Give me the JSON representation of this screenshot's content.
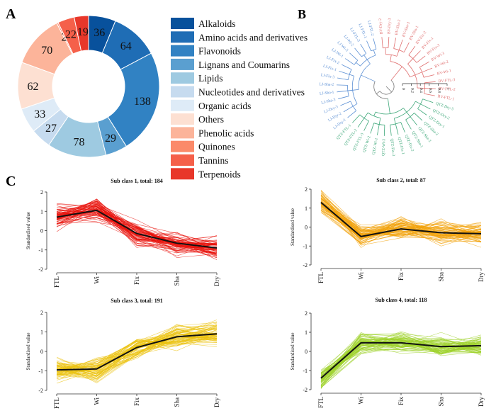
{
  "panels": {
    "a": "A",
    "b": "B",
    "c": "C"
  },
  "chart_data": [
    {
      "panel": "A",
      "type": "pie",
      "categories": [
        "Alkaloids",
        "Amino acids and derivatives",
        "Flavonoids",
        "Lignans and Coumarins",
        "Lipids",
        "Nucleotides and derivatives",
        "Organic acids",
        "Others",
        "Phenolic acids",
        "Quinones",
        "Tannins",
        "Terpenoids"
      ],
      "values": [
        36,
        64,
        138,
        29,
        78,
        27,
        33,
        62,
        70,
        2,
        22,
        19
      ],
      "colors": [
        "#08519c",
        "#1f6db5",
        "#3182c3",
        "#5a9fd0",
        "#9ecae1",
        "#c6dbef",
        "#deebf7",
        "#fde0d2",
        "#fcb49a",
        "#fb8a6a",
        "#f5604a",
        "#e8372a"
      ],
      "legend": "right"
    },
    {
      "panel": "B",
      "type": "dendrogram",
      "labels": [
        "BV-Dry-2",
        "BV-Dry-3",
        "BV-Sha-2",
        "BV-Sha-3",
        "BV-Sha-1",
        "BV-Fix-2",
        "BV-Fix-1",
        "BV-Fix-3",
        "BV-Wi-3",
        "BV-Wi-2",
        "BV-Wi-1",
        "BV-FTL-3",
        "BV-FTL-2",
        "BV-FTL-1",
        "QTZ-Dry-3",
        "QTZ-Dry-2",
        "QTZ-Dry-1",
        "QTZ-Sha-2",
        "QTZ-Sha-3",
        "QTZ-Sha-1",
        "QTZ-Fix-2",
        "QTZ-Fix-1",
        "QTZ-Fix-3",
        "QTZ-Wi-3",
        "QTZ-Wi-1",
        "QTZ-Wi-2",
        "QTZ-FTL-3",
        "QTZ-FTL-2",
        "QTZ-FTL-1",
        "LJ-Dry-1",
        "LJ-Dry-2",
        "LJ-Dry-3",
        "LJ-Sha-3",
        "LJ-Sha-1",
        "LJ-Sha-2",
        "LJ-Fix-3",
        "LJ-Fix-1",
        "LJ-Fix-2",
        "LJ-Wi-1",
        "LJ-Wi-3",
        "LJ-Wi-2",
        "LJ-FTL-3",
        "LJ-FTL-1",
        "LJ-FTL-2"
      ],
      "group_colors": {
        "BV": "#e07070",
        "QTZ": "#3fa87a",
        "LJ": "#5b8fd4"
      },
      "scale_ticks": [
        "0",
        "0.2",
        "0.4",
        "0.6",
        "0.8",
        "1"
      ]
    },
    {
      "panel": "C",
      "type": "line",
      "subplots": [
        {
          "title": "Sub class 1, total: 184",
          "ylabel": "Standardised value",
          "categories": [
            "FTL",
            "Wi",
            "Fix",
            "Sha",
            "Dry"
          ],
          "ylim": [
            -2,
            2
          ],
          "yticks": [
            "2",
            "1",
            "0",
            "-1",
            "-2"
          ],
          "line_color": "#e8120b",
          "mean": [
            0.7,
            1.05,
            -0.15,
            -0.65,
            -0.9
          ]
        },
        {
          "title": "Sub class 2, total: 87",
          "ylabel": "Standardised value",
          "categories": [
            "FTL",
            "Wi",
            "Fix",
            "Sha",
            "Dry"
          ],
          "ylim": [
            -2,
            2
          ],
          "yticks": [
            "2",
            "1",
            "0",
            "-1",
            "-2"
          ],
          "line_color": "#f2a20a",
          "mean": [
            1.3,
            -0.5,
            -0.1,
            -0.3,
            -0.35
          ]
        },
        {
          "title": "Sub class 3, total: 191",
          "ylabel": "Standardised value",
          "categories": [
            "FTL",
            "Wi",
            "Fix",
            "Sha",
            "Dry"
          ],
          "ylim": [
            -2,
            2
          ],
          "yticks": [
            "2",
            "1",
            "0",
            "-1",
            "-2"
          ],
          "line_color": "#ebc20c",
          "mean": [
            -0.95,
            -0.9,
            0.2,
            0.75,
            0.9
          ]
        },
        {
          "title": "Sub class 4, total: 118",
          "ylabel": "Standardised value",
          "categories": [
            "FTL",
            "Wi",
            "Fix",
            "Sha",
            "Dry"
          ],
          "ylim": [
            -2,
            2
          ],
          "yticks": [
            "2",
            "1",
            "0",
            "-1",
            "-2"
          ],
          "line_color": "#9ed12a",
          "mean": [
            -1.4,
            0.45,
            0.45,
            0.25,
            0.3
          ]
        }
      ]
    }
  ]
}
